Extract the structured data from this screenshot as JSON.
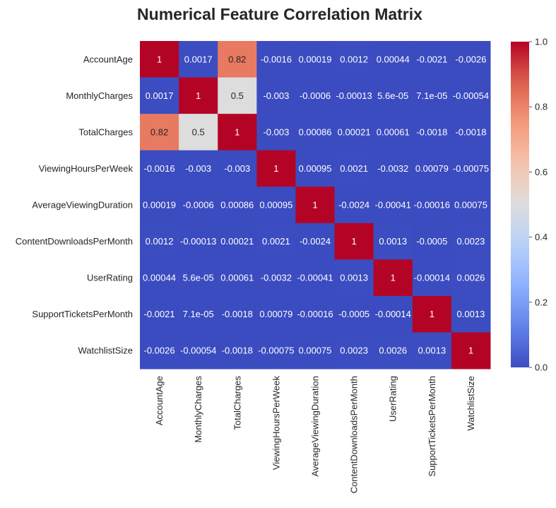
{
  "chart_data": {
    "type": "heatmap",
    "title": "Numerical Feature Correlation Matrix",
    "xlabel": "",
    "ylabel": "",
    "colormap": "coolwarm",
    "vmin": 0.0,
    "vmax": 1.0,
    "labels": [
      "AccountAge",
      "MonthlyCharges",
      "TotalCharges",
      "ViewingHoursPerWeek",
      "AverageViewingDuration",
      "ContentDownloadsPerMonth",
      "UserRating",
      "SupportTicketsPerMonth",
      "WatchlistSize"
    ],
    "values": [
      [
        1,
        0.0017,
        0.82,
        -0.0016,
        0.00019,
        0.0012,
        0.00044,
        -0.0021,
        -0.0026
      ],
      [
        0.0017,
        1,
        0.5,
        -0.003,
        -0.0006,
        -0.00013,
        5.6e-05,
        7.1e-05,
        -0.00054
      ],
      [
        0.82,
        0.5,
        1,
        -0.003,
        0.00086,
        0.00021,
        0.00061,
        -0.0018,
        -0.0018
      ],
      [
        -0.0016,
        -0.003,
        -0.003,
        1,
        0.00095,
        0.0021,
        -0.0032,
        0.00079,
        -0.00075
      ],
      [
        0.00019,
        -0.0006,
        0.00086,
        0.00095,
        1,
        -0.0024,
        -0.00041,
        -0.00016,
        0.00075
      ],
      [
        0.0012,
        -0.00013,
        0.00021,
        0.0021,
        -0.0024,
        1,
        0.0013,
        -0.0005,
        0.0023
      ],
      [
        0.00044,
        5.6e-05,
        0.00061,
        -0.0032,
        -0.00041,
        0.0013,
        1,
        -0.00014,
        0.0026
      ],
      [
        -0.0021,
        7.1e-05,
        -0.0018,
        0.00079,
        -0.00016,
        -0.0005,
        -0.00014,
        1,
        0.0013
      ],
      [
        -0.0026,
        -0.00054,
        -0.0018,
        -0.00075,
        0.00075,
        0.0023,
        0.0026,
        0.0013,
        1
      ]
    ],
    "annotations": [
      [
        "1",
        "0.0017",
        "0.82",
        "-0.0016",
        "0.00019",
        "0.0012",
        "0.00044",
        "-0.0021",
        "-0.0026"
      ],
      [
        "0.0017",
        "1",
        "0.5",
        "-0.003",
        "-0.0006",
        "-0.00013",
        "5.6e-05",
        "7.1e-05",
        "-0.00054"
      ],
      [
        "0.82",
        "0.5",
        "1",
        "-0.003",
        "0.00086",
        "0.00021",
        "0.00061",
        "-0.0018",
        "-0.0018"
      ],
      [
        "-0.0016",
        "-0.003",
        "-0.003",
        "1",
        "0.00095",
        "0.0021",
        "-0.0032",
        "0.00079",
        "-0.00075"
      ],
      [
        "0.00019",
        "-0.0006",
        "0.00086",
        "0.00095",
        "1",
        "-0.0024",
        "-0.00041",
        "-0.00016",
        "0.00075"
      ],
      [
        "0.0012",
        "-0.00013",
        "0.00021",
        "0.0021",
        "-0.0024",
        "1",
        "0.0013",
        "-0.0005",
        "0.0023"
      ],
      [
        "0.00044",
        "5.6e-05",
        "0.00061",
        "-0.0032",
        "-0.00041",
        "0.0013",
        "1",
        "-0.00014",
        "0.0026"
      ],
      [
        "-0.0021",
        "7.1e-05",
        "-0.0018",
        "0.00079",
        "-0.00016",
        "-0.0005",
        "-0.00014",
        "1",
        "0.0013"
      ],
      [
        "-0.0026",
        "-0.00054",
        "-0.0018",
        "-0.00075",
        "0.00075",
        "0.0023",
        "0.0026",
        "0.0013",
        "1"
      ]
    ],
    "colorbar": {
      "ticks": [
        0.0,
        0.2,
        0.4,
        0.6,
        0.8,
        1.0
      ],
      "tick_labels": [
        "0.0",
        "0.2",
        "0.4",
        "0.6",
        "0.8",
        "1.0"
      ]
    },
    "grid": false
  }
}
